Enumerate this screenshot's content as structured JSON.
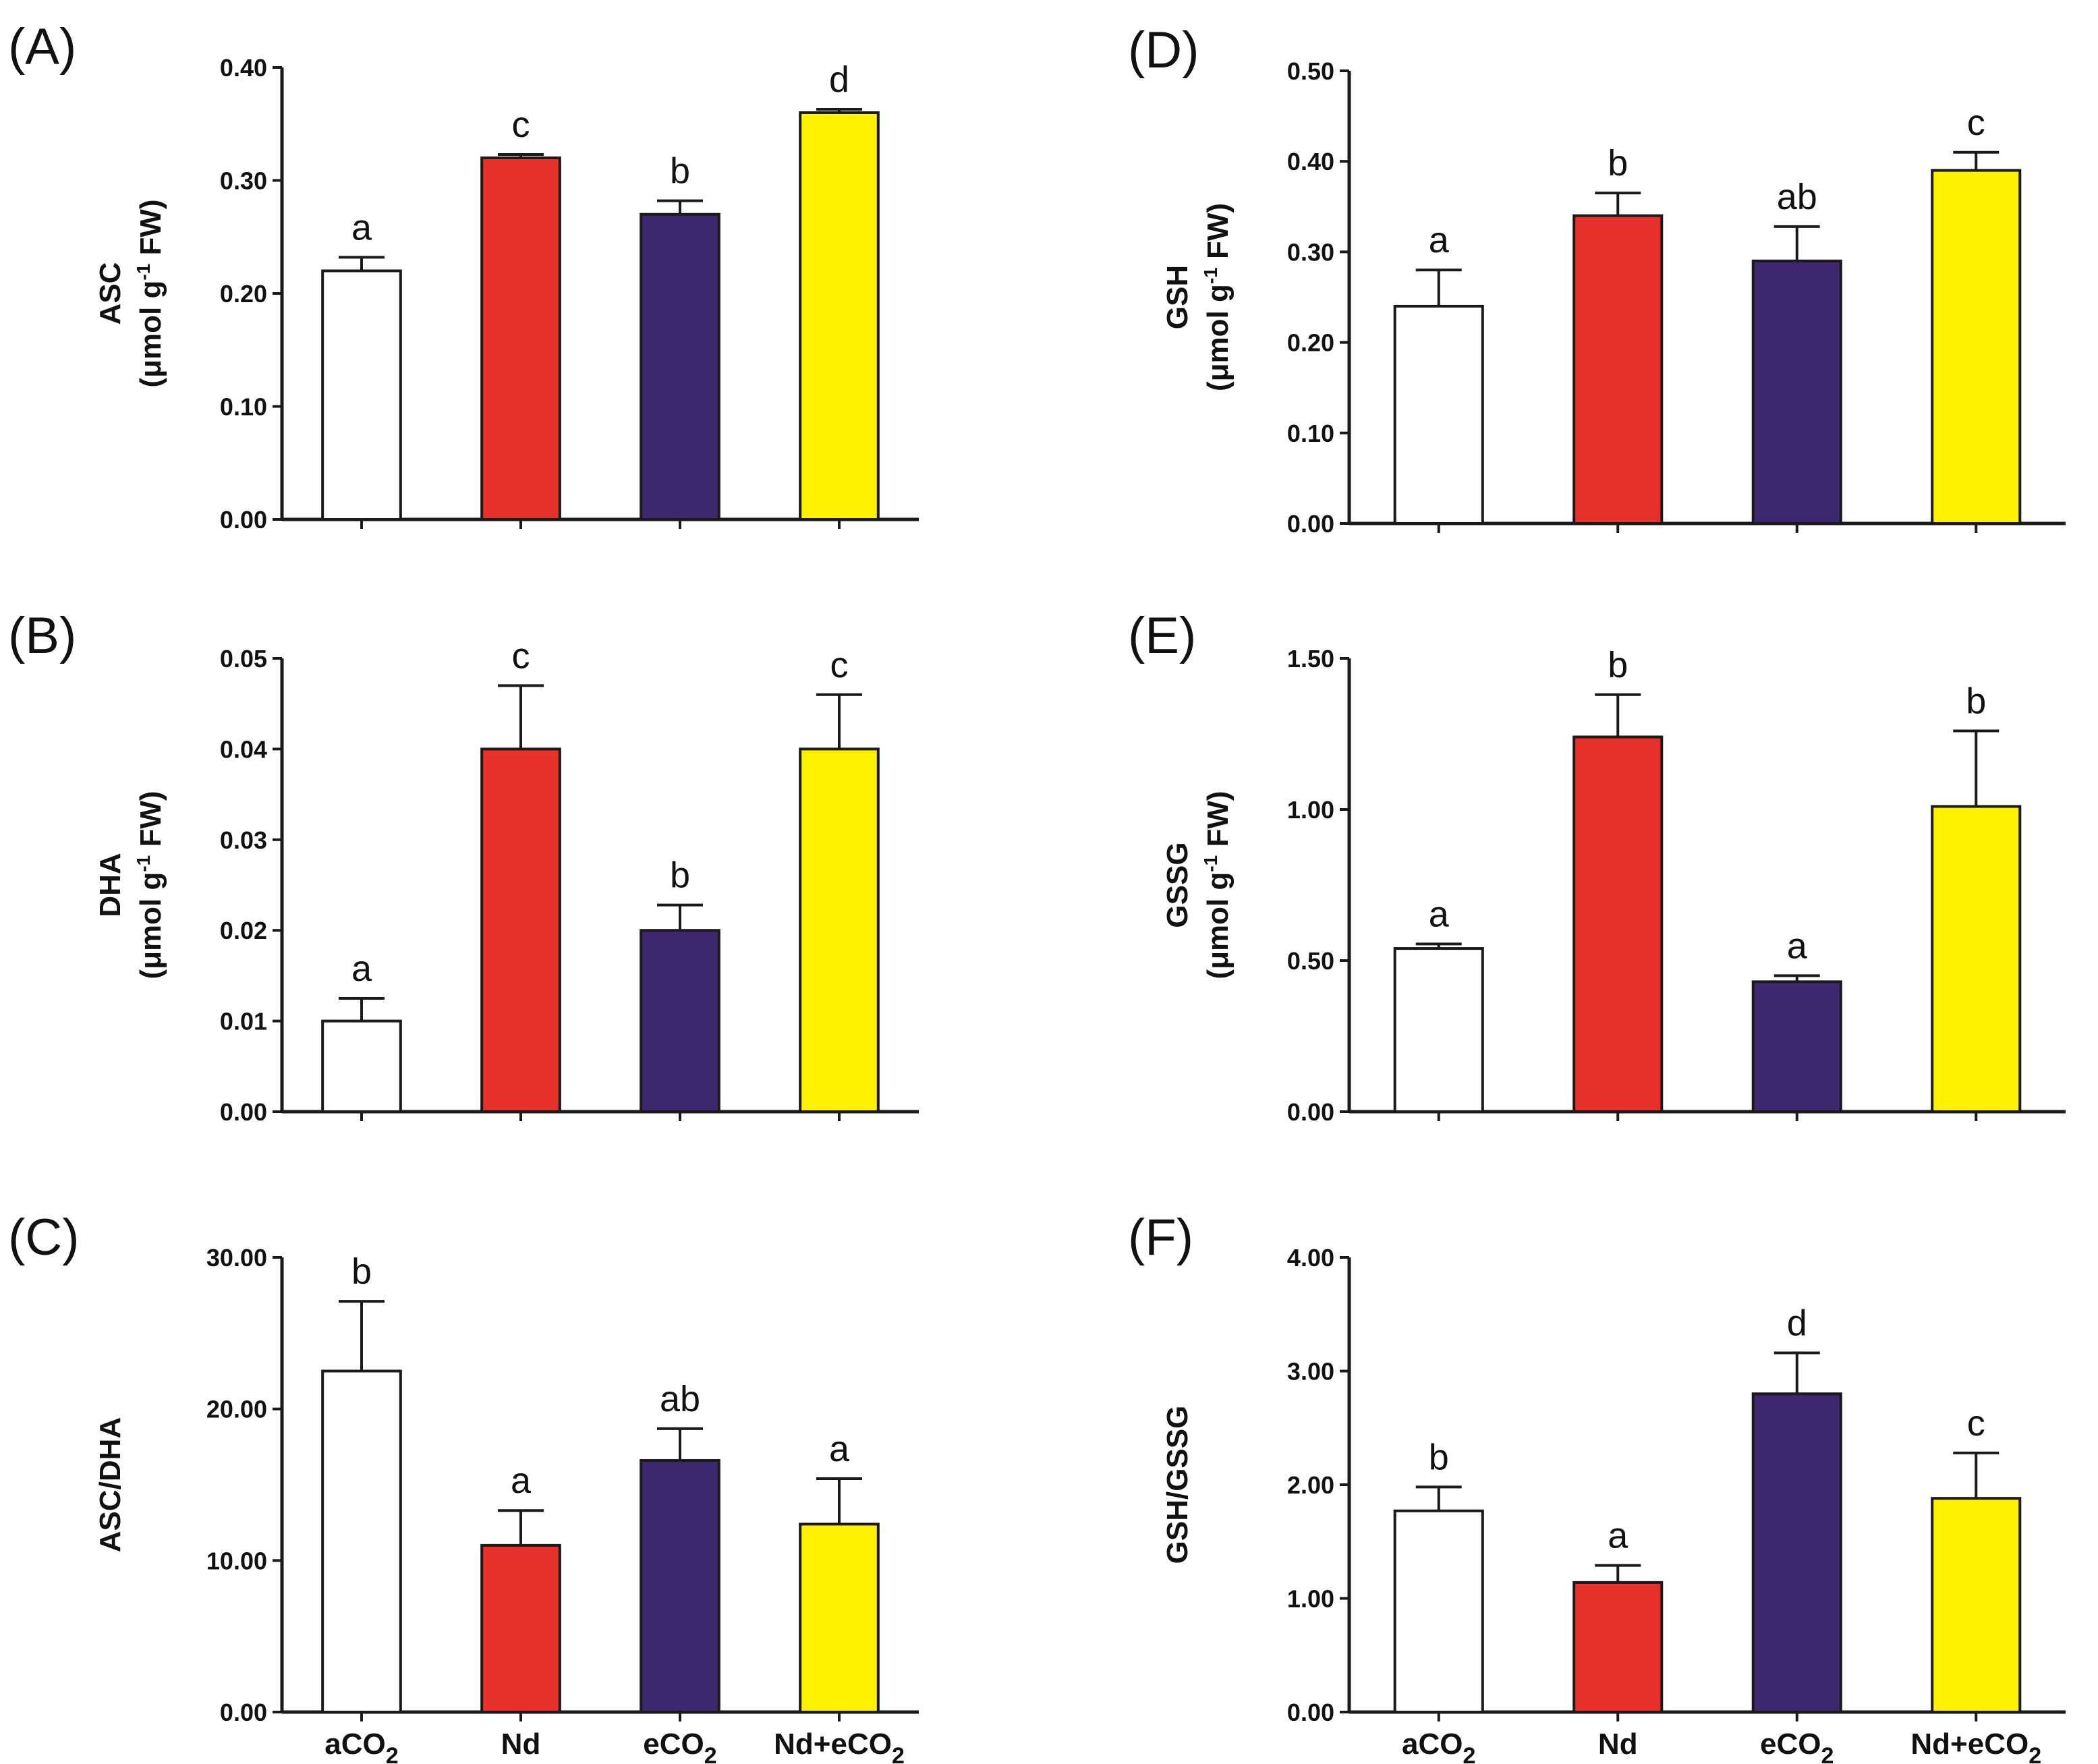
{
  "colors": {
    "aCO2": "#ffffff",
    "Nd": "#e8312b",
    "eCO2": "#3d2870",
    "Nd+eCO2": "#fff200",
    "axis": "#1a1a1a"
  },
  "x_categories": [
    {
      "base": "aCO",
      "sub": "2"
    },
    {
      "base": "Nd",
      "sub": ""
    },
    {
      "base": "eCO",
      "sub": "2"
    },
    {
      "base": "Nd+eCO",
      "sub": "2"
    }
  ],
  "chart_data": [
    {
      "panel": "(A)",
      "type": "bar",
      "metric": "ASC",
      "ylabel_unit": "(μmol g-1 FW)",
      "ylim": [
        0,
        0.4
      ],
      "yticks": [
        "0.00",
        "0.10",
        "0.20",
        "0.30",
        "0.40"
      ],
      "categories": [
        "aCO2",
        "Nd",
        "eCO2",
        "Nd+eCO2"
      ],
      "values": [
        0.22,
        0.32,
        0.27,
        0.36
      ],
      "errors": [
        0.012,
        0.003,
        0.012,
        0.003
      ],
      "letters": [
        "a",
        "c",
        "b",
        "d"
      ],
      "show_x_labels": false
    },
    {
      "panel": "(B)",
      "type": "bar",
      "metric": "DHA",
      "ylabel_unit": "(μmol g-1 FW)",
      "ylim": [
        0,
        0.05
      ],
      "yticks": [
        "0.00",
        "0.01",
        "0.02",
        "0.03",
        "0.04",
        "0.05"
      ],
      "categories": [
        "aCO2",
        "Nd",
        "eCO2",
        "Nd+eCO2"
      ],
      "values": [
        0.01,
        0.04,
        0.02,
        0.04
      ],
      "errors": [
        0.0025,
        0.007,
        0.0028,
        0.006
      ],
      "letters": [
        "a",
        "c",
        "b",
        "c"
      ],
      "show_x_labels": false
    },
    {
      "panel": "(C)",
      "type": "bar",
      "metric": "ASC/DHA",
      "ylabel_unit": "",
      "ylim": [
        0,
        30
      ],
      "yticks": [
        "0.00",
        "10.00",
        "20.00",
        "30.00"
      ],
      "categories": [
        "aCO2",
        "Nd",
        "eCO2",
        "Nd+eCO2"
      ],
      "values": [
        22.5,
        11.0,
        16.6,
        12.4
      ],
      "errors": [
        4.6,
        2.3,
        2.1,
        3.0
      ],
      "letters": [
        "b",
        "a",
        "ab",
        "a"
      ],
      "show_x_labels": true
    },
    {
      "panel": "(D)",
      "type": "bar",
      "metric": "GSH",
      "ylabel_unit": "(μmol g-1 FW)",
      "ylim": [
        0,
        0.5
      ],
      "yticks": [
        "0.00",
        "0.10",
        "0.20",
        "0.30",
        "0.40",
        "0.50"
      ],
      "categories": [
        "aCO2",
        "Nd",
        "eCO2",
        "Nd+eCO2"
      ],
      "values": [
        0.24,
        0.34,
        0.29,
        0.39
      ],
      "errors": [
        0.04,
        0.025,
        0.038,
        0.02
      ],
      "letters": [
        "a",
        "b",
        "ab",
        "c"
      ],
      "show_x_labels": false
    },
    {
      "panel": "(E)",
      "type": "bar",
      "metric": "GSSG",
      "ylabel_unit": "(μmol g-1 FW)",
      "ylim": [
        0,
        1.5
      ],
      "yticks": [
        "0.00",
        "0.50",
        "1.00",
        "1.50"
      ],
      "categories": [
        "aCO2",
        "Nd",
        "eCO2",
        "Nd+eCO2"
      ],
      "values": [
        0.54,
        1.24,
        0.43,
        1.01
      ],
      "errors": [
        0.015,
        0.14,
        0.02,
        0.25
      ],
      "letters": [
        "a",
        "b",
        "a",
        "b"
      ],
      "show_x_labels": false
    },
    {
      "panel": "(F)",
      "type": "bar",
      "metric": "GSH/GSSG",
      "ylabel_unit": "",
      "ylim": [
        0,
        4
      ],
      "yticks": [
        "0.00",
        "1.00",
        "2.00",
        "3.00",
        "4.00"
      ],
      "categories": [
        "aCO2",
        "Nd",
        "eCO2",
        "Nd+eCO2"
      ],
      "values": [
        1.77,
        1.14,
        2.8,
        1.88
      ],
      "errors": [
        0.21,
        0.15,
        0.36,
        0.4
      ],
      "letters": [
        "b",
        "a",
        "d",
        "c"
      ],
      "show_x_labels": true
    }
  ]
}
